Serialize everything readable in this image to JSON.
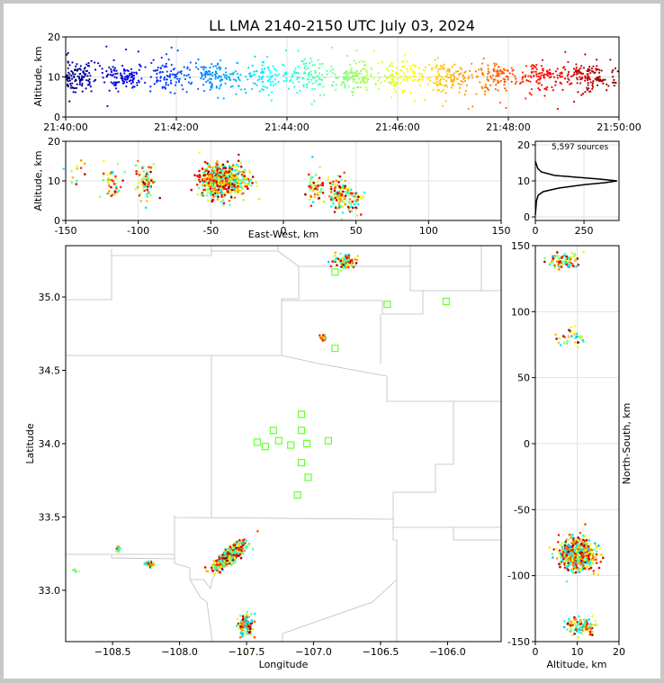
{
  "figure": {
    "title": "LL LMA 2140-2150 UTC July 03, 2024"
  },
  "chart_data": [
    {
      "id": "time-height",
      "type": "scatter",
      "ylabel": "Altitude, km",
      "xlim": [
        "21:40:00",
        "21:50:00"
      ],
      "ylim": [
        0,
        20
      ],
      "xticks": [
        "21:40:00",
        "21:42:00",
        "21:44:00",
        "21:46:00",
        "21:48:00",
        "21:50:00"
      ],
      "yticks": [
        0,
        10,
        20
      ],
      "grid": true,
      "color_by": "time",
      "colormap": "jet"
    },
    {
      "id": "ew-height",
      "type": "scatter",
      "xlabel": "East-West, km",
      "ylabel": "Altitude, km",
      "xlim": [
        -150,
        150
      ],
      "ylim": [
        0,
        20
      ],
      "xticks": [
        -150,
        -100,
        -50,
        0,
        50,
        100,
        150
      ],
      "yticks": [
        0,
        10,
        20
      ],
      "clusters": [
        {
          "x": -143,
          "y": 11.5,
          "n": 12
        },
        {
          "x": -118,
          "y": 9.5,
          "n": 45
        },
        {
          "x": -95,
          "y": 10.0,
          "n": 70
        },
        {
          "x": -42,
          "y": 10.0,
          "n": 600
        },
        {
          "x": 22,
          "y": 8.5,
          "n": 55
        },
        {
          "x": 38,
          "y": 6.5,
          "n": 110
        },
        {
          "x": 49,
          "y": 5.5,
          "n": 45
        }
      ],
      "grid": true
    },
    {
      "id": "altitude-histogram",
      "type": "line",
      "annotation": "5,597 sources",
      "xlim": [
        0,
        430
      ],
      "ylim": [
        -1,
        21
      ],
      "xticks": [
        0,
        250
      ],
      "yticks": [
        0,
        10,
        20
      ],
      "profile": [
        {
          "count": 0,
          "alt": 0.5
        },
        {
          "count": 6,
          "alt": 4.5
        },
        {
          "count": 15,
          "alt": 6.0
        },
        {
          "count": 40,
          "alt": 7.0
        },
        {
          "count": 120,
          "alt": 8.0
        },
        {
          "count": 260,
          "alt": 9.0
        },
        {
          "count": 360,
          "alt": 9.5
        },
        {
          "count": 420,
          "alt": 10.0
        },
        {
          "count": 330,
          "alt": 10.5
        },
        {
          "count": 100,
          "alt": 11.5
        },
        {
          "count": 30,
          "alt": 12.5
        },
        {
          "count": 12,
          "alt": 13.5
        },
        {
          "count": 6,
          "alt": 14.5
        },
        {
          "count": 0,
          "alt": 15.5
        }
      ],
      "grid": true
    },
    {
      "id": "plan-view",
      "type": "scatter",
      "xlabel": "Longitude",
      "ylabel": "Latitude",
      "xlim": [
        -108.85,
        -105.6
      ],
      "ylim": [
        32.65,
        35.35
      ],
      "xticks": [
        -108.5,
        -108.0,
        -107.5,
        -107.0,
        -106.5,
        -106.0
      ],
      "yticks": [
        33.0,
        33.5,
        34.0,
        34.5,
        35.0
      ],
      "stations": [
        {
          "lon": -107.42,
          "lat": 34.01
        },
        {
          "lon": -107.36,
          "lat": 33.98
        },
        {
          "lon": -107.3,
          "lat": 34.09
        },
        {
          "lon": -107.26,
          "lat": 34.02
        },
        {
          "lon": -107.17,
          "lat": 33.99
        },
        {
          "lon": -107.09,
          "lat": 34.2
        },
        {
          "lon": -107.09,
          "lat": 34.09
        },
        {
          "lon": -107.05,
          "lat": 34.0
        },
        {
          "lon": -106.89,
          "lat": 34.02
        },
        {
          "lon": -107.09,
          "lat": 33.87
        },
        {
          "lon": -107.04,
          "lat": 33.77
        },
        {
          "lon": -107.12,
          "lat": 33.65
        },
        {
          "lon": -106.84,
          "lat": 34.65
        },
        {
          "lon": -106.45,
          "lat": 34.95
        },
        {
          "lon": -106.01,
          "lat": 34.97
        },
        {
          "lon": -106.84,
          "lat": 35.17
        }
      ]
    },
    {
      "id": "height-ns",
      "type": "scatter",
      "xlabel": "Altitude, km",
      "ylabel": "North-South, km",
      "xlim": [
        0,
        20
      ],
      "ylim": [
        -150,
        150
      ],
      "xticks": [
        0,
        10,
        20
      ],
      "yticks": [
        -150,
        -100,
        -50,
        0,
        50,
        100,
        150
      ],
      "clusters": [
        {
          "alt": 7.0,
          "ns": 139,
          "n": 90
        },
        {
          "alt": 9.0,
          "ns": 81,
          "n": 35
        },
        {
          "alt": 10.0,
          "ns": -84,
          "n": 600
        },
        {
          "alt": 11.0,
          "ns": -138,
          "n": 110
        }
      ],
      "grid": true
    }
  ]
}
